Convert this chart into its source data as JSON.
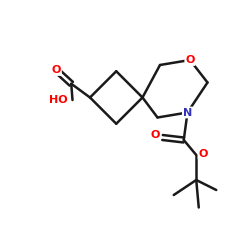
{
  "background": "#ffffff",
  "bond_color": "#1a1a1a",
  "bond_lw": 1.8,
  "atom_colors": {
    "O": "#ff0000",
    "N": "#3333bb",
    "HO": "#ff0000"
  },
  "figsize": [
    2.5,
    2.5
  ],
  "dpi": 100,
  "xlim": [
    0,
    10
  ],
  "ylim": [
    0,
    10
  ]
}
